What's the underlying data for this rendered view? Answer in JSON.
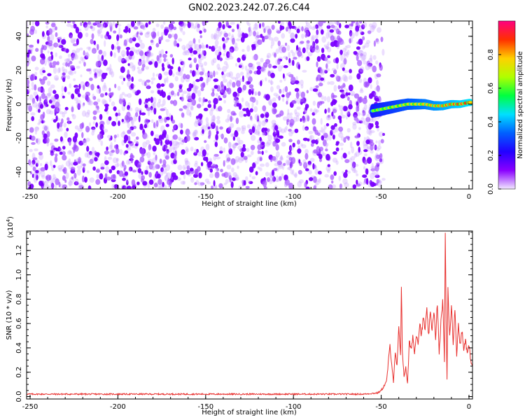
{
  "title": "GN02.2023.242.07.26.C44",
  "chart_data": [
    {
      "type": "heatmap",
      "xlabel": "Height of straight line (km)",
      "ylabel": "Frequency (Hz)",
      "xlim": [
        -252,
        2
      ],
      "ylim": [
        -50,
        49
      ],
      "xticks": [
        -250,
        -200,
        -150,
        -100,
        -50,
        0
      ],
      "yticks": [
        -40,
        -20,
        0,
        20,
        40
      ],
      "grid": false,
      "noise_region_x": [
        -252,
        -50
      ],
      "signal_track": {
        "x": [
          -55,
          -50,
          -45,
          -40,
          -35,
          -30,
          -25,
          -20,
          -15,
          -10,
          -5,
          0,
          1
        ],
        "y": [
          -4,
          -3,
          -2,
          -1,
          0,
          0,
          0,
          -1,
          -1,
          0,
          0,
          1,
          1
        ]
      },
      "colorbar": {
        "label": "Normalized spectral amplitude",
        "range": [
          0.0,
          1.0
        ],
        "ticks": [
          0.0,
          0.2,
          0.4,
          0.6,
          0.8
        ],
        "colormap": [
          "#f2e8ff",
          "#8a00ff",
          "#2200ff",
          "#0060ff",
          "#00e0ff",
          "#00ff40",
          "#b0ff00",
          "#ffd000",
          "#ff3000",
          "#ff0080"
        ]
      }
    },
    {
      "type": "line",
      "xlabel": "Height of straight line (km)",
      "ylabel": "SNR (10 * v/v)",
      "y_multiplier": "(x10",
      "y_multiplier_exp": "4",
      "y_multiplier_close": ")",
      "xlim": [
        -252,
        2
      ],
      "ylim": [
        -0.02,
        1.36
      ],
      "xticks": [
        -250,
        -200,
        -150,
        -100,
        -50,
        0
      ],
      "yticks": [
        0.0,
        0.2,
        0.4,
        0.6,
        0.8,
        1.0,
        1.2
      ],
      "grid": false,
      "line_color": "#e8302e",
      "series": [
        {
          "x": [
            -252,
            -150,
            -60,
            -52,
            -50,
            -47,
            -45,
            -43,
            -42,
            -41,
            -40,
            -39,
            -38.5,
            -38,
            -37,
            -36,
            -35,
            -34,
            -33,
            -32,
            -31,
            -30,
            -29,
            -28,
            -27,
            -26,
            -25,
            -24,
            -23,
            -22,
            -21,
            -20,
            -19,
            -18,
            -17,
            -16,
            -15,
            -14,
            -13.5,
            -13,
            -12.5,
            -12,
            -11,
            -10,
            -9,
            -8,
            -7,
            -6,
            -5,
            -4,
            -3,
            -2,
            -1,
            0,
            1,
            2
          ],
          "y": [
            0.02,
            0.02,
            0.02,
            0.03,
            0.05,
            0.12,
            0.42,
            0.12,
            0.35,
            0.25,
            0.55,
            0.35,
            0.92,
            0.4,
            0.15,
            0.25,
            0.1,
            0.45,
            0.38,
            0.5,
            0.35,
            0.52,
            0.45,
            0.6,
            0.5,
            0.65,
            0.55,
            0.7,
            0.5,
            0.68,
            0.55,
            0.72,
            0.45,
            0.78,
            0.35,
            0.6,
            0.8,
            0.3,
            1.36,
            0.6,
            0.13,
            0.9,
            0.5,
            0.75,
            0.45,
            0.7,
            0.35,
            0.6,
            0.42,
            0.55,
            0.38,
            0.48,
            0.35,
            0.42,
            0.3,
            0.25
          ]
        }
      ]
    }
  ]
}
